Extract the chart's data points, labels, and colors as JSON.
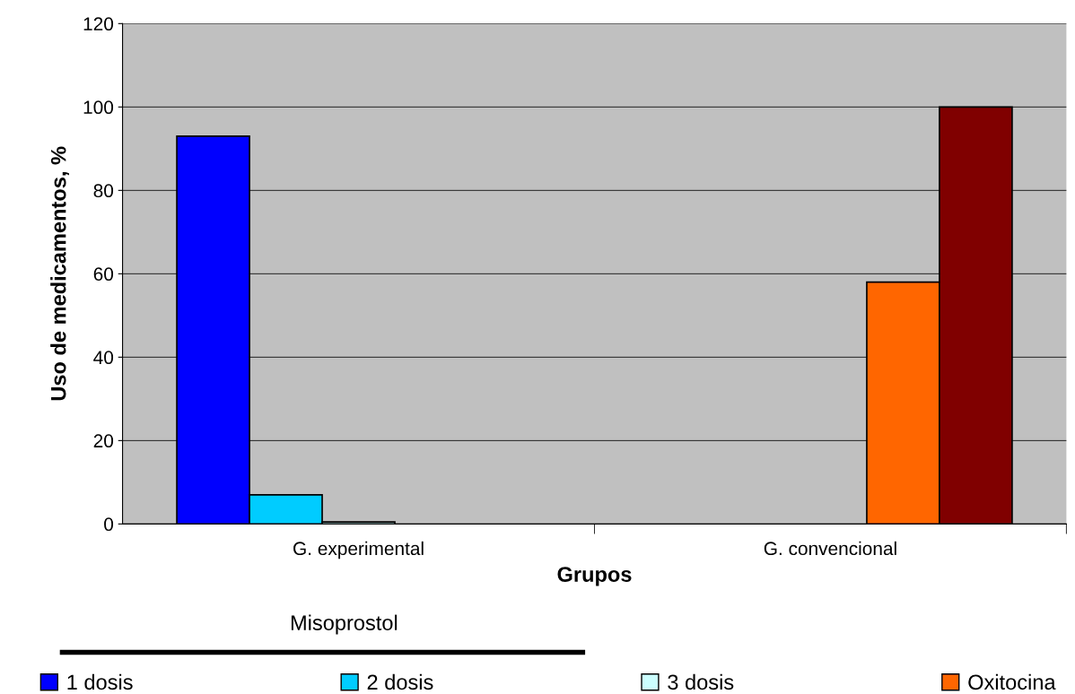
{
  "chart_data": {
    "type": "bar",
    "xlabel": "Grupos",
    "ylabel": "Uso de medicamentos, %",
    "categories": [
      "G. experimental",
      "G. convencional"
    ],
    "series": [
      {
        "name": "1 dosis",
        "color": "#0000ff",
        "values": [
          93,
          null
        ]
      },
      {
        "name": "2 dosis",
        "color": "#00ccff",
        "values": [
          7,
          null
        ]
      },
      {
        "name": "3 dosis",
        "color": "#ccffff",
        "values": [
          0.5,
          null
        ]
      },
      {
        "name": "Oxitocina",
        "color": "#ff6600",
        "values": [
          null,
          58
        ]
      },
      {
        "color": "#800000",
        "values": [
          null,
          100
        ]
      }
    ],
    "ylim": [
      0,
      120
    ],
    "yticks": [
      0,
      20,
      40,
      60,
      80,
      100,
      120
    ],
    "grid": "y",
    "legend": "bottom",
    "annotations": [
      "Misoprostol"
    ]
  }
}
